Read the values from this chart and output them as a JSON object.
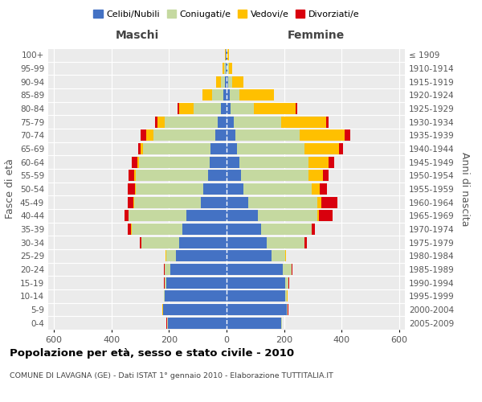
{
  "age_groups": [
    "0-4",
    "5-9",
    "10-14",
    "15-19",
    "20-24",
    "25-29",
    "30-34",
    "35-39",
    "40-44",
    "45-49",
    "50-54",
    "55-59",
    "60-64",
    "65-69",
    "70-74",
    "75-79",
    "80-84",
    "85-89",
    "90-94",
    "95-99",
    "100+"
  ],
  "birth_years": [
    "2005-2009",
    "2000-2004",
    "1995-1999",
    "1990-1994",
    "1985-1989",
    "1980-1984",
    "1975-1979",
    "1970-1974",
    "1965-1969",
    "1960-1964",
    "1955-1959",
    "1950-1954",
    "1945-1949",
    "1940-1944",
    "1935-1939",
    "1930-1934",
    "1925-1929",
    "1920-1924",
    "1915-1919",
    "1910-1914",
    "≤ 1909"
  ],
  "maschi_celibe": [
    205,
    220,
    215,
    210,
    195,
    175,
    165,
    155,
    140,
    90,
    80,
    65,
    60,
    55,
    40,
    30,
    20,
    10,
    5,
    3,
    2
  ],
  "maschi_coniugato": [
    2,
    2,
    2,
    5,
    20,
    35,
    130,
    175,
    200,
    230,
    235,
    250,
    245,
    235,
    215,
    185,
    95,
    40,
    15,
    5,
    2
  ],
  "maschi_vedovo": [
    1,
    1,
    1,
    1,
    1,
    1,
    1,
    1,
    2,
    3,
    3,
    5,
    5,
    10,
    25,
    25,
    50,
    35,
    15,
    5,
    1
  ],
  "maschi_divorziato": [
    1,
    1,
    1,
    1,
    1,
    1,
    5,
    12,
    12,
    20,
    25,
    20,
    20,
    8,
    20,
    8,
    5,
    0,
    0,
    0,
    0
  ],
  "femmine_celibe": [
    190,
    210,
    205,
    205,
    195,
    155,
    140,
    120,
    110,
    75,
    60,
    50,
    45,
    35,
    30,
    25,
    15,
    10,
    5,
    3,
    2
  ],
  "femmine_coniugata": [
    2,
    2,
    5,
    10,
    30,
    50,
    130,
    175,
    205,
    240,
    235,
    235,
    240,
    235,
    225,
    165,
    80,
    35,
    15,
    5,
    2
  ],
  "femmine_vedova": [
    1,
    1,
    1,
    1,
    1,
    1,
    1,
    2,
    5,
    15,
    30,
    50,
    70,
    120,
    155,
    155,
    145,
    120,
    40,
    12,
    3
  ],
  "femmine_divorziata": [
    1,
    1,
    1,
    1,
    2,
    2,
    8,
    10,
    50,
    55,
    25,
    20,
    20,
    15,
    20,
    10,
    5,
    0,
    0,
    0,
    0
  ],
  "colors": {
    "celibe": "#4472c4",
    "coniugato": "#c5d9a0",
    "vedovo": "#ffc000",
    "divorziato": "#d9000d"
  },
  "xlim": 620,
  "title": "Popolazione per età, sesso e stato civile - 2010",
  "subtitle": "COMUNE DI LAVAGNA (GE) - Dati ISTAT 1° gennaio 2010 - Elaborazione TUTTITALIA.IT",
  "ylabel_left": "Fasce di età",
  "ylabel_right": "Anni di nascita",
  "xlabel_left": "Maschi",
  "xlabel_right": "Femmine"
}
